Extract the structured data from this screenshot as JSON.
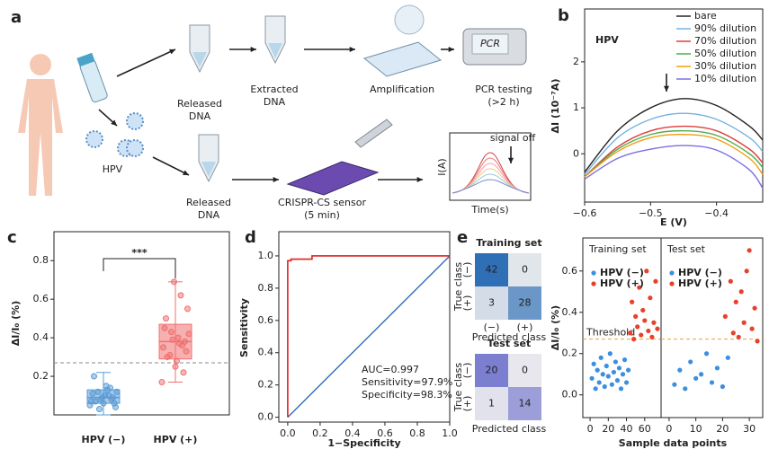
{
  "diagram": {
    "label": "a",
    "released_top": [
      "Released",
      "DNA"
    ],
    "extracted": [
      "Extracted",
      "DNA"
    ],
    "amplification": [
      "Amplification"
    ],
    "pcr": [
      "PCR testing",
      "(>2 h)"
    ],
    "pcr_device": "PCR",
    "virus": "HPV",
    "released_bottom": [
      "Released",
      "DNA"
    ],
    "sensor": [
      "CRISPR-CS sensor",
      "(5 min)"
    ],
    "inset_note": "signal off",
    "inset_ylabel": "I(A)",
    "inset_xlabel": "Time(s)"
  },
  "chart_data": [
    {
      "type": "line",
      "panel_label": "b",
      "annotation": "HPV",
      "xlabel": "E (V)",
      "ylabel": "ΔI (10⁻⁷A)",
      "x": [
        -0.6,
        -0.55,
        -0.5,
        -0.45,
        -0.4,
        -0.35,
        -0.33
      ],
      "series": [
        {
          "name": "bare",
          "color": "#222222",
          "values": [
            -0.4,
            0.5,
            1.0,
            1.2,
            1.05,
            0.6,
            0.3
          ]
        },
        {
          "name": "90% dilution",
          "color": "#74b3e0",
          "values": [
            -0.45,
            0.35,
            0.75,
            0.88,
            0.75,
            0.35,
            0.05
          ]
        },
        {
          "name": "70% dilution",
          "color": "#e23b3b",
          "values": [
            -0.5,
            0.15,
            0.5,
            0.6,
            0.5,
            0.1,
            -0.2
          ]
        },
        {
          "name": "50% dilution",
          "color": "#4caf50",
          "values": [
            -0.5,
            0.1,
            0.42,
            0.5,
            0.4,
            0.0,
            -0.3
          ]
        },
        {
          "name": "30% dilution",
          "color": "#f39c12",
          "values": [
            -0.5,
            0.05,
            0.35,
            0.42,
            0.32,
            -0.1,
            -0.45
          ]
        },
        {
          "name": "10% dilution",
          "color": "#7b6fe0",
          "values": [
            -0.55,
            -0.1,
            0.1,
            0.18,
            0.08,
            -0.35,
            -0.75
          ]
        }
      ],
      "xlim": [
        -0.6,
        -0.33
      ],
      "ylim": [
        -1.05,
        3.15
      ],
      "xticks": [
        {
          "value": -0.6,
          "label": "−0.6"
        },
        {
          "value": -0.5,
          "label": "−0.5"
        },
        {
          "value": -0.4,
          "label": "−0.4"
        }
      ],
      "yticks": [
        0,
        1,
        2
      ],
      "legend": "upper right"
    },
    {
      "type": "box",
      "panel_label": "c",
      "ylabel": "ΔI/I₀ (%)",
      "significance": "***",
      "categories": [
        "HPV (−)",
        "HPV (+)"
      ],
      "colors": [
        "#5b9bd5",
        "#f07070"
      ],
      "boxes": [
        {
          "whislo": 0.0,
          "q1": 0.06,
          "med": 0.09,
          "q3": 0.13,
          "whishi": 0.22
        },
        {
          "whislo": 0.17,
          "q1": 0.29,
          "med": 0.38,
          "q3": 0.47,
          "whishi": 0.69
        }
      ],
      "points": [
        [
          0.05,
          0.08,
          0.1,
          0.12,
          0.07,
          0.09,
          0.15,
          0.03,
          0.11,
          0.06,
          0.13,
          0.08,
          0.2,
          0.04,
          0.1,
          0.09,
          0.07,
          0.12,
          0.14,
          0.06
        ],
        [
          0.17,
          0.22,
          0.28,
          0.31,
          0.35,
          0.38,
          0.4,
          0.43,
          0.45,
          0.33,
          0.37,
          0.39,
          0.5,
          0.55,
          0.62,
          0.69,
          0.3,
          0.42,
          0.36,
          0.25
        ]
      ],
      "threshold": 0.27,
      "ylim": [
        0,
        0.95
      ],
      "yticks": [
        0.2,
        0.4,
        0.6,
        0.8
      ]
    },
    {
      "type": "roc",
      "panel_label": "d",
      "xlabel": "1−Specificity",
      "ylabel": "Sensitivity",
      "color": "#e02020",
      "x": [
        0,
        0,
        0.02,
        0.02,
        0.15,
        0.15,
        1
      ],
      "values": [
        0,
        0.97,
        0.97,
        0.98,
        0.98,
        1,
        1
      ],
      "annotations": [
        "AUC=0.997",
        "Sensitivity=97.9%",
        "Specificity=98.3%"
      ],
      "xlim": [
        -0.055,
        1.0
      ],
      "ylim": [
        -0.03,
        1.15
      ],
      "xticks": [
        {
          "value": 0,
          "label": "0.0"
        },
        0.2,
        0.4,
        0.6,
        0.8,
        {
          "value": 1,
          "label": "1.0"
        }
      ],
      "yticks": [
        {
          "value": 0,
          "label": "0.0"
        },
        0.2,
        0.4,
        0.6,
        0.8,
        {
          "value": 1,
          "label": "1.0"
        }
      ]
    },
    {
      "type": "confusion",
      "panel_label": "e",
      "ylabel": "True class",
      "xlabel": "Predicted class",
      "classes": [
        "(−)",
        "(+)"
      ],
      "matrices": [
        {
          "title": "Training set",
          "color": "#2f6fb5",
          "values": [
            [
              42,
              0
            ],
            [
              3,
              28
            ]
          ]
        },
        {
          "title": "Test set",
          "color": "#7c7fd0",
          "values": [
            [
              20,
              0
            ],
            [
              1,
              14
            ]
          ]
        }
      ]
    },
    {
      "type": "scatter",
      "title": "Training set",
      "xlabel": "Sample data points",
      "ylabel": "ΔI/I₀ (%)",
      "threshold": 0.27,
      "threshold_label": "Threshold",
      "series": [
        {
          "name": "HPV (−)",
          "color": "#3b8fe0",
          "x": [
            2,
            4,
            6,
            8,
            10,
            12,
            14,
            16,
            18,
            20,
            22,
            24,
            26,
            28,
            30,
            32,
            34,
            36,
            38,
            40,
            42
          ],
          "values": [
            0.08,
            0.15,
            0.03,
            0.12,
            0.06,
            0.18,
            0.1,
            0.04,
            0.14,
            0.09,
            0.2,
            0.05,
            0.11,
            0.16,
            0.07,
            0.13,
            0.03,
            0.1,
            0.17,
            0.06,
            0.12
          ]
        },
        {
          "name": "HPV (+)",
          "color": "#e8402a",
          "x": [
            44,
            46,
            48,
            50,
            52,
            54,
            56,
            58,
            60,
            62,
            64,
            66,
            68,
            70,
            72,
            74
          ],
          "values": [
            0.3,
            0.45,
            0.27,
            0.38,
            0.33,
            0.52,
            0.29,
            0.41,
            0.36,
            0.6,
            0.31,
            0.47,
            0.28,
            0.35,
            0.55,
            0.32
          ]
        }
      ],
      "xlim": [
        -8,
        78
      ],
      "ylim": [
        -0.11,
        0.76
      ],
      "xticks": [
        0,
        20,
        40,
        60
      ],
      "yticks": [
        {
          "value": 0,
          "label": "0.0"
        },
        0.2,
        0.4,
        0.6
      ]
    },
    {
      "type": "scatter",
      "title": "Test set",
      "series": [
        {
          "name": "HPV (−)",
          "color": "#3b8fe0",
          "x": [
            2,
            4,
            6,
            8,
            10,
            12,
            14,
            16,
            18,
            20,
            22
          ],
          "values": [
            0.05,
            0.12,
            0.03,
            0.16,
            0.08,
            0.1,
            0.2,
            0.06,
            0.13,
            0.04,
            0.18
          ]
        },
        {
          "name": "HPV (+)",
          "color": "#e8402a",
          "x": [
            21,
            23,
            24,
            25,
            26,
            27,
            28,
            29,
            30,
            31,
            32,
            33
          ],
          "values": [
            0.38,
            0.55,
            0.3,
            0.45,
            0.28,
            0.5,
            0.35,
            0.6,
            0.7,
            0.32,
            0.42,
            0.26
          ]
        }
      ],
      "threshold": 0.27,
      "xlim": [
        -3,
        35
      ],
      "ylim": [
        -0.11,
        0.76
      ],
      "xticks": [
        0,
        10,
        20,
        30
      ]
    }
  ]
}
